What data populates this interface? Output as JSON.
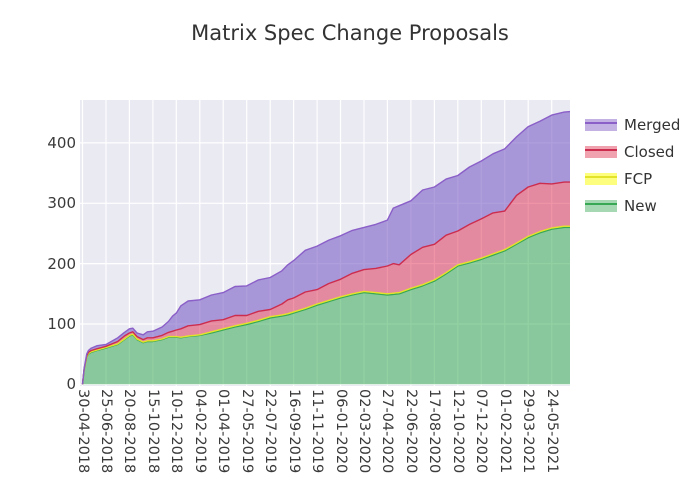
{
  "title": "Matrix Spec Change Proposals",
  "colors": {
    "figure_bg": "#ffffff",
    "plot_bg": "#eaeaf2",
    "grid": "#ffffff",
    "text": "#333333"
  },
  "legend": [
    {
      "label": "Merged",
      "swatch_fill": "#c3b1e3",
      "swatch_line": "#8a5fc8"
    },
    {
      "label": "Closed",
      "swatch_fill": "#f0a2ae",
      "swatch_line": "#cc2d4f"
    },
    {
      "label": "FCP",
      "swatch_fill": "#fdfd7e",
      "swatch_line": "#e3e32a"
    },
    {
      "label": "New",
      "swatch_fill": "#a6d8b4",
      "swatch_line": "#38a854"
    }
  ],
  "chart_data": {
    "type": "area",
    "stacked": true,
    "title": "Matrix Spec Change Proposals",
    "xlabel": "",
    "ylabel": "",
    "grid": true,
    "legend_position": "right-outside",
    "y_ticks": [
      0,
      100,
      200,
      300,
      400
    ],
    "ylim": [
      0,
      471
    ],
    "x_tick_interval_days": 56,
    "x_domain_days": 1165,
    "x_tick_labels": [
      "30-04-2018",
      "25-06-2018",
      "20-08-2018",
      "15-10-2018",
      "10-12-2018",
      "04-02-2019",
      "01-04-2019",
      "27-05-2019",
      "22-07-2019",
      "16-09-2019",
      "11-11-2019",
      "06-01-2020",
      "02-03-2020",
      "27-04-2020",
      "22-06-2020",
      "17-08-2020",
      "12-10-2020",
      "07-12-2020",
      "01-02-2021",
      "29-03-2021",
      "24-05-2021"
    ],
    "keypoints_day": [
      0,
      4,
      10,
      14,
      21,
      35,
      56,
      84,
      100,
      112,
      120,
      130,
      145,
      155,
      168,
      190,
      205,
      215,
      224,
      235,
      252,
      280,
      308,
      336,
      364,
      392,
      420,
      448,
      476,
      490,
      504,
      532,
      560,
      588,
      616,
      644,
      672,
      700,
      728,
      742,
      756,
      784,
      812,
      840,
      868,
      896,
      924,
      952,
      980,
      1008,
      1036,
      1064,
      1092,
      1120,
      1150,
      1165
    ],
    "series": [
      {
        "name": "New",
        "line_color": "#38a854",
        "fill_color": "rgba(67,176,95,0.58)",
        "values": [
          0,
          25,
          45,
          50,
          53,
          56,
          60,
          66,
          74,
          80,
          82,
          74,
          69,
          71,
          71,
          74,
          78,
          78,
          78,
          77,
          79,
          81,
          85,
          90,
          95,
          99,
          104,
          110,
          113,
          115,
          118,
          124,
          131,
          137,
          143,
          148,
          152,
          150,
          148,
          149,
          150,
          157,
          163,
          171,
          183,
          196,
          201,
          207,
          214,
          221,
          232,
          243,
          251,
          257,
          260,
          260
        ]
      },
      {
        "name": "FCP",
        "line_color": "#e3e32a",
        "fill_color": "rgba(255,255,0,0.5)",
        "values": [
          0,
          0,
          0,
          1,
          1,
          1,
          1,
          1,
          1,
          1,
          1,
          1,
          1,
          1,
          1,
          1,
          1,
          1,
          1,
          1,
          1,
          1,
          2,
          2,
          2,
          2,
          2,
          2,
          2,
          2,
          2,
          2,
          2,
          2,
          2,
          2,
          2,
          2,
          2,
          2,
          2,
          2,
          2,
          2,
          2,
          2,
          2,
          2,
          2,
          2,
          2,
          2,
          2,
          2,
          2,
          2
        ]
      },
      {
        "name": "Closed",
        "line_color": "#cc2d4f",
        "fill_color": "rgba(220,20,60,0.45)",
        "values": [
          0,
          1,
          2,
          2,
          2,
          2,
          2,
          4,
          5,
          4,
          4,
          4,
          4,
          5,
          5,
          6,
          7,
          9,
          11,
          14,
          17,
          17,
          18,
          15,
          17,
          13,
          15,
          12,
          18,
          23,
          23,
          27,
          24,
          28,
          29,
          34,
          36,
          40,
          46,
          49,
          46,
          56,
          62,
          59,
          62,
          56,
          62,
          65,
          68,
          64,
          79,
          82,
          80,
          73,
          73,
          73
        ]
      },
      {
        "name": "Merged",
        "line_color": "#8a5fc8",
        "fill_color": "rgba(128,100,200,0.62)",
        "values": [
          0,
          1,
          3,
          3,
          4,
          5,
          3,
          6,
          6,
          7,
          6,
          6,
          8,
          10,
          11,
          14,
          18,
          25,
          28,
          38,
          41,
          41,
          43,
          45,
          48,
          49,
          52,
          53,
          55,
          58,
          62,
          69,
          72,
          72,
          72,
          71,
          70,
          73,
          76,
          92,
          98,
          89,
          95,
          95,
          93,
          92,
          95,
          96,
          98,
          103,
          97,
          100,
          103,
          114,
          116,
          117
        ]
      }
    ]
  }
}
